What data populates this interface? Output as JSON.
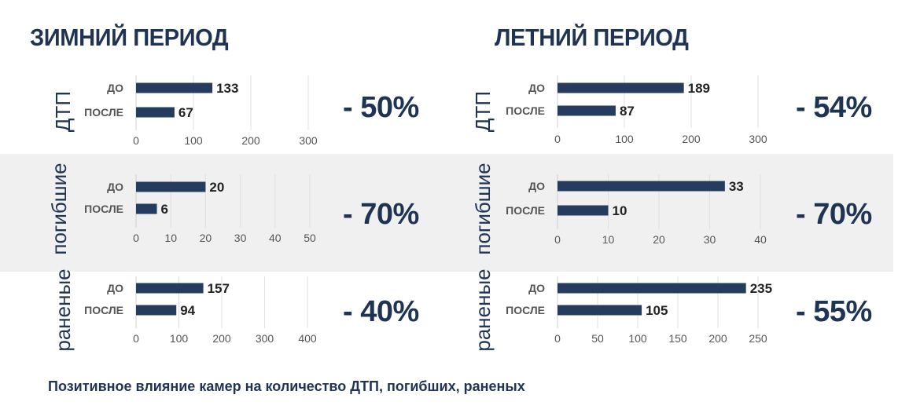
{
  "titles": {
    "winter": "ЗИМНИЙ ПЕРИОД",
    "summer": "ЛЕТНИЙ ПЕРИОД"
  },
  "colors": {
    "bar": "#263c5e",
    "text": "#1f3352",
    "band": "#f0f0f0",
    "grid": "#e0e0e0"
  },
  "caption": "Позитивное влияние камер на количество ДТП, погибших, раненых",
  "chart_data": [
    {
      "id": "winter-dtp",
      "type": "bar",
      "orientation": "horizontal",
      "period": "ЗИМНИЙ ПЕРИОД",
      "row_label": "ДТП",
      "categories": [
        "ДО",
        "ПОСЛЕ"
      ],
      "values": [
        133,
        67
      ],
      "xlim": [
        0,
        300
      ],
      "ticks": [
        0,
        100,
        200,
        300
      ],
      "change": "- 50%"
    },
    {
      "id": "summer-dtp",
      "type": "bar",
      "orientation": "horizontal",
      "period": "ЛЕТНИЙ ПЕРИОД",
      "row_label": "ДТП",
      "categories": [
        "ДО",
        "ПОСЛЕ"
      ],
      "values": [
        189,
        87
      ],
      "xlim": [
        0,
        300
      ],
      "ticks": [
        0,
        100,
        200,
        300
      ],
      "change": "- 54%"
    },
    {
      "id": "winter-killed",
      "type": "bar",
      "orientation": "horizontal",
      "period": "ЗИМНИЙ ПЕРИОД",
      "row_label": "погибшие",
      "categories": [
        "ДО",
        "ПОСЛЕ"
      ],
      "values": [
        20,
        6
      ],
      "xlim": [
        0,
        50
      ],
      "ticks": [
        0,
        10,
        20,
        30,
        40,
        50
      ],
      "change": "- 70%"
    },
    {
      "id": "summer-killed",
      "type": "bar",
      "orientation": "horizontal",
      "period": "ЛЕТНИЙ ПЕРИОД",
      "row_label": "погибшие",
      "categories": [
        "ДО",
        "ПОСЛЕ"
      ],
      "values": [
        33,
        10
      ],
      "xlim": [
        0,
        40
      ],
      "ticks": [
        0,
        10,
        20,
        30,
        40
      ],
      "change": "- 70%"
    },
    {
      "id": "winter-injured",
      "type": "bar",
      "orientation": "horizontal",
      "period": "ЗИМНИЙ ПЕРИОД",
      "row_label": "раненые",
      "categories": [
        "ДО",
        "ПОСЛЕ"
      ],
      "values": [
        157,
        94
      ],
      "xlim": [
        0,
        400
      ],
      "ticks": [
        0,
        100,
        200,
        300,
        400
      ],
      "change": "- 40%"
    },
    {
      "id": "summer-injured",
      "type": "bar",
      "orientation": "horizontal",
      "period": "ЛЕТНИЙ ПЕРИОД",
      "row_label": "раненые",
      "categories": [
        "ДО",
        "ПОСЛЕ"
      ],
      "values": [
        235,
        105
      ],
      "xlim": [
        0,
        250
      ],
      "ticks": [
        0,
        50,
        100,
        150,
        200,
        250
      ],
      "change": "- 55%"
    }
  ]
}
